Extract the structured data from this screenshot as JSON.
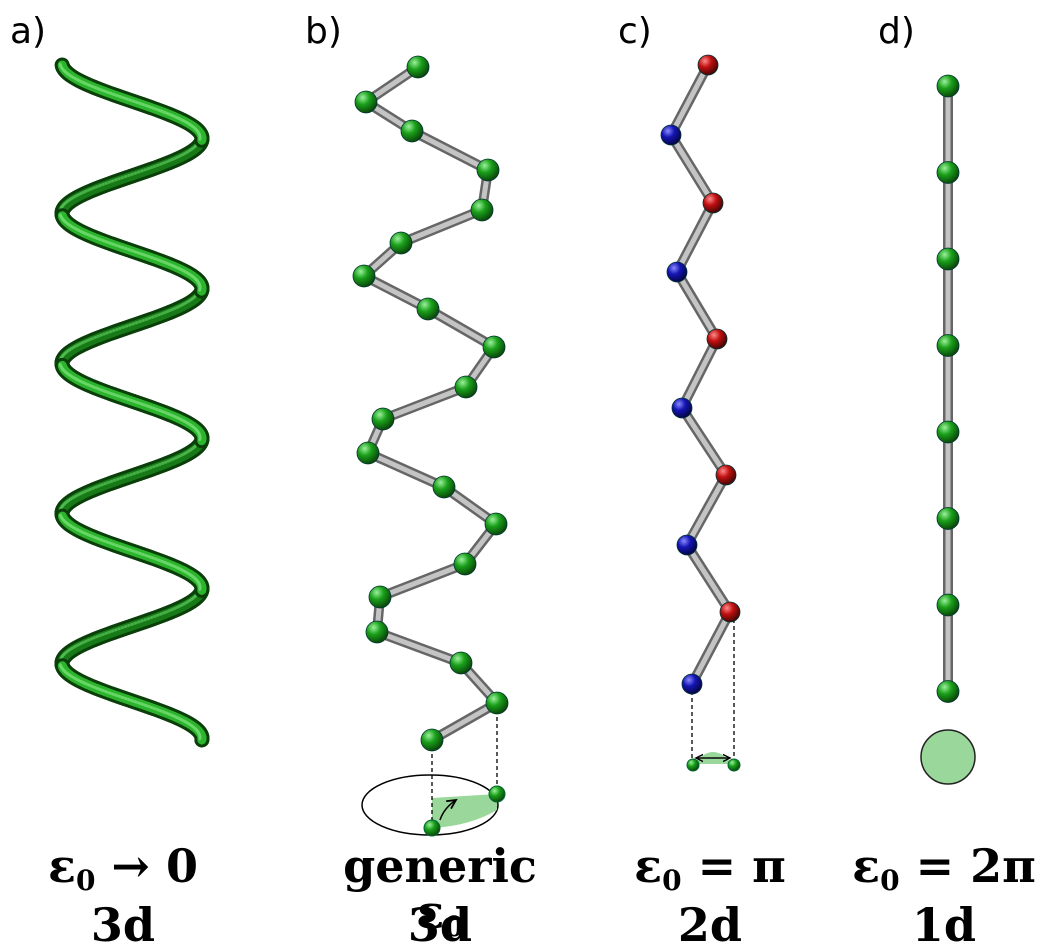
{
  "panels": [
    {
      "letter": "a)",
      "eps_text": "ε",
      "eps_sub": "0",
      "eps_rest": " → 0",
      "dim": "3d"
    },
    {
      "letter": "b)",
      "eps_pre": "generic ",
      "eps_text": "ε",
      "eps_sub": "0",
      "eps_rest": "",
      "dim": "3d"
    },
    {
      "letter": "c)",
      "eps_text": "ε",
      "eps_sub": "0",
      "eps_rest": " = π",
      "dim": "2d"
    },
    {
      "letter": "d)",
      "eps_text": "ε",
      "eps_sub": "0",
      "eps_rest": " = 2π",
      "dim": "1d"
    }
  ],
  "colors": {
    "green_bead": "#1aa01a",
    "red_bead": "#c01010",
    "blue_bead": "#1010b0",
    "bond": "#a8a8a8",
    "tube": "#1e8e1e",
    "shade": "#9ad79a"
  }
}
